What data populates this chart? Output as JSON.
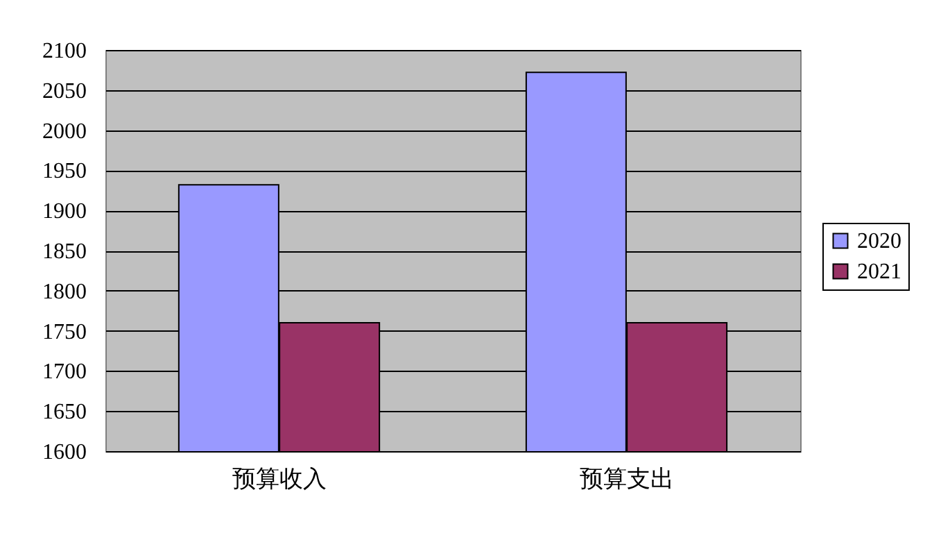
{
  "chart_data": {
    "type": "bar",
    "categories": [
      "预算收入",
      "预算支出"
    ],
    "series": [
      {
        "name": "2020",
        "color": "#9999ff",
        "values": [
          1932,
          2072
        ]
      },
      {
        "name": "2021",
        "color": "#993366",
        "values": [
          1760,
          1760
        ]
      }
    ],
    "ylim": [
      1600,
      2100
    ],
    "yticks": [
      1600,
      1650,
      1700,
      1750,
      1800,
      1850,
      1900,
      1950,
      2000,
      2050,
      2100
    ],
    "grid": "y",
    "legend": "right"
  }
}
